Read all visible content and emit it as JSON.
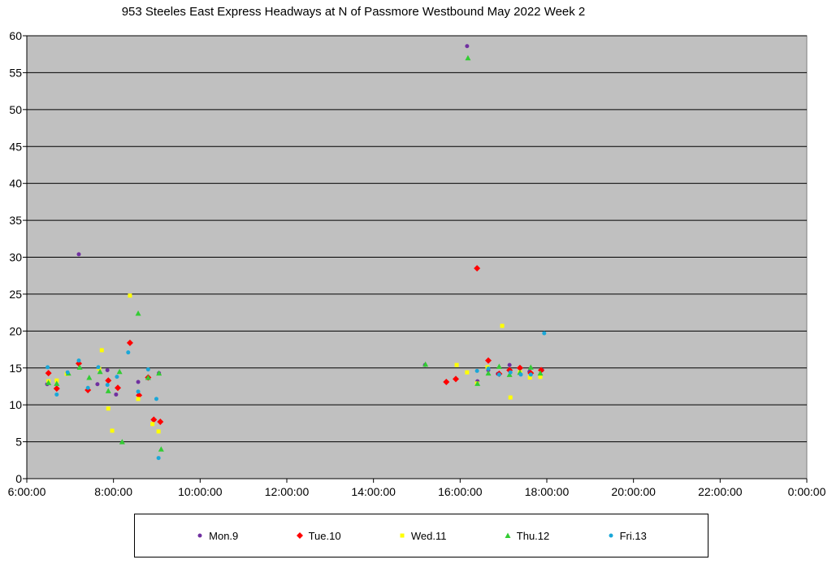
{
  "chart_data": {
    "type": "scatter",
    "title": "953 Steeles East Express Headways at N of Passmore Westbound May 2022  Week 2",
    "xlabel": "",
    "ylabel": "",
    "x_unit": "hours of day",
    "xlim": [
      6,
      24
    ],
    "ylim": [
      0,
      60
    ],
    "grid": true,
    "legend_position": "bottom",
    "x_tick_values": [
      6,
      8,
      10,
      12,
      14,
      16,
      18,
      20,
      22,
      24
    ],
    "x_tick_labels": [
      "6:00:00",
      "8:00:00",
      "10:00:00",
      "12:00:00",
      "14:00:00",
      "16:00:00",
      "18:00:00",
      "20:00:00",
      "22:00:00",
      "0:00:00"
    ],
    "y_tick_labels": [
      "0",
      "5",
      "10",
      "15",
      "20",
      "25",
      "30",
      "35",
      "40",
      "45",
      "50",
      "55",
      "60"
    ],
    "series": [
      {
        "name": "Mon.9",
        "color": "#7030A0",
        "marker": "circle",
        "points": [
          [
            6.47,
            12.8
          ],
          [
            7.2,
            30.4
          ],
          [
            7.63,
            12.8
          ],
          [
            7.86,
            14.7
          ],
          [
            8.06,
            11.4
          ],
          [
            8.57,
            13.1
          ],
          [
            8.8,
            13.6
          ],
          [
            9.05,
            14.3
          ],
          [
            15.19,
            15.4
          ],
          [
            16.16,
            58.6
          ],
          [
            16.4,
            13.2
          ],
          [
            16.65,
            14.7
          ],
          [
            16.87,
            14.2
          ],
          [
            17.14,
            15.4
          ],
          [
            17.6,
            14.5
          ],
          [
            17.89,
            14.7
          ]
        ]
      },
      {
        "name": "Tue.10",
        "color": "#FF0000",
        "marker": "diamond",
        "points": [
          [
            6.5,
            14.3
          ],
          [
            6.69,
            12.2
          ],
          [
            7.2,
            15.6
          ],
          [
            7.41,
            12.0
          ],
          [
            7.88,
            13.3
          ],
          [
            8.1,
            12.3
          ],
          [
            8.38,
            18.4
          ],
          [
            8.59,
            11.3
          ],
          [
            8.8,
            13.7
          ],
          [
            8.93,
            8.0
          ],
          [
            9.08,
            7.7
          ],
          [
            15.68,
            13.1
          ],
          [
            15.9,
            13.5
          ],
          [
            16.39,
            28.5
          ],
          [
            16.65,
            16.0
          ],
          [
            16.9,
            14.2
          ],
          [
            17.14,
            14.7
          ],
          [
            17.38,
            15.0
          ],
          [
            17.63,
            14.3
          ],
          [
            17.87,
            14.7
          ]
        ]
      },
      {
        "name": "Wed.11",
        "color": "#FFFF00",
        "marker": "square",
        "points": [
          [
            6.5,
            13.2
          ],
          [
            6.69,
            13.3
          ],
          [
            6.92,
            14.2
          ],
          [
            7.67,
            14.9
          ],
          [
            7.73,
            17.4
          ],
          [
            7.88,
            9.5
          ],
          [
            7.97,
            6.5
          ],
          [
            8.38,
            24.8
          ],
          [
            8.57,
            10.8
          ],
          [
            8.9,
            7.4
          ],
          [
            9.04,
            6.4
          ],
          [
            15.92,
            15.4
          ],
          [
            16.16,
            14.4
          ],
          [
            16.39,
            12.9
          ],
          [
            16.63,
            15.1
          ],
          [
            16.97,
            20.7
          ],
          [
            17.16,
            11.0
          ],
          [
            17.38,
            14.4
          ],
          [
            17.61,
            13.7
          ],
          [
            17.85,
            13.8
          ]
        ]
      },
      {
        "name": "Thu.12",
        "color": "#33CC33",
        "marker": "triangle",
        "points": [
          [
            6.5,
            13.0
          ],
          [
            6.69,
            12.9
          ],
          [
            6.96,
            14.3
          ],
          [
            7.22,
            15.1
          ],
          [
            7.44,
            13.7
          ],
          [
            7.69,
            14.5
          ],
          [
            7.88,
            11.9
          ],
          [
            8.14,
            14.5
          ],
          [
            8.2,
            5.0
          ],
          [
            8.57,
            22.4
          ],
          [
            8.8,
            13.7
          ],
          [
            9.05,
            14.3
          ],
          [
            9.1,
            4.0
          ],
          [
            15.2,
            15.5
          ],
          [
            16.18,
            57.0
          ],
          [
            16.4,
            12.9
          ],
          [
            16.65,
            14.3
          ],
          [
            16.9,
            15.2
          ],
          [
            17.14,
            14.1
          ],
          [
            17.38,
            14.4
          ],
          [
            17.63,
            15.1
          ],
          [
            17.85,
            14.3
          ]
        ]
      },
      {
        "name": "Fri.13",
        "color": "#1AA7D8",
        "marker": "circle",
        "points": [
          [
            6.48,
            15.1
          ],
          [
            6.69,
            11.4
          ],
          [
            6.94,
            14.4
          ],
          [
            7.2,
            16.0
          ],
          [
            7.41,
            12.3
          ],
          [
            7.65,
            15.1
          ],
          [
            7.86,
            12.7
          ],
          [
            8.08,
            13.8
          ],
          [
            8.34,
            17.1
          ],
          [
            8.57,
            11.8
          ],
          [
            8.8,
            14.8
          ],
          [
            8.99,
            10.8
          ],
          [
            9.04,
            2.8
          ],
          [
            16.39,
            14.6
          ],
          [
            16.65,
            14.9
          ],
          [
            16.9,
            14.1
          ],
          [
            17.16,
            14.4
          ],
          [
            17.4,
            14.1
          ],
          [
            17.63,
            14.1
          ],
          [
            17.94,
            19.7
          ]
        ]
      }
    ]
  }
}
